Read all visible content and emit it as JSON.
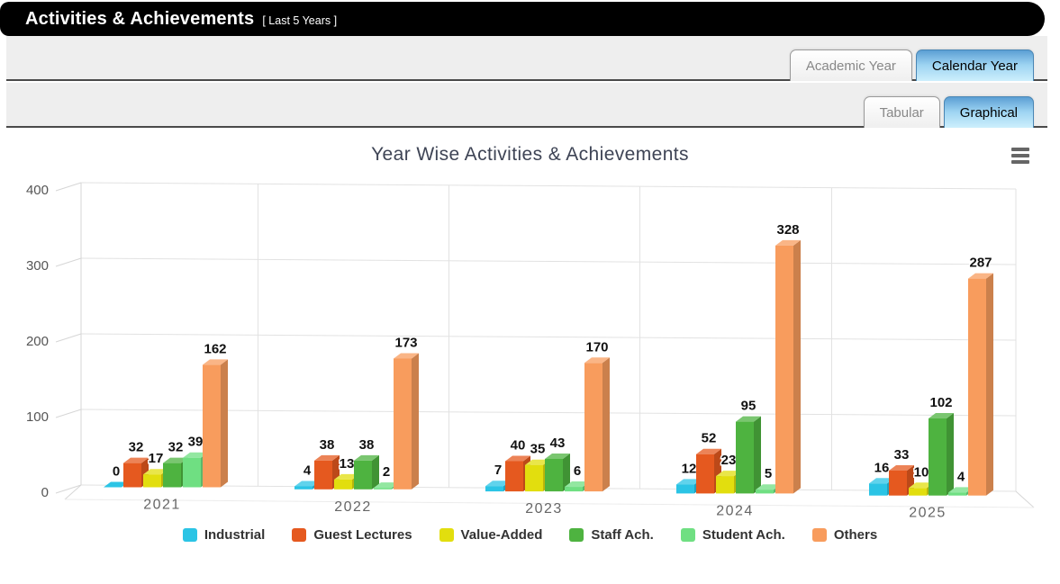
{
  "header": {
    "title": "Activities & Achievements",
    "subtitle": "[ Last 5 Years ]"
  },
  "toolbars": {
    "year_type_tabs": [
      {
        "label": "Academic Year",
        "active": false
      },
      {
        "label": "Calendar Year",
        "active": true
      }
    ],
    "view_tabs": [
      {
        "label": "Tabular",
        "active": false
      },
      {
        "label": "Graphical",
        "active": true
      }
    ]
  },
  "menu_icon": "context-menu-icon",
  "chart_data": {
    "type": "bar",
    "variant": "3d-column",
    "title": "Year Wise Activities & Achievements",
    "categories": [
      "2021",
      "2022",
      "2023",
      "2024",
      "2025"
    ],
    "series": [
      {
        "name": "Industrial",
        "color": "#2BC4E5",
        "values": [
          0,
          4,
          7,
          12,
          16
        ]
      },
      {
        "name": "Guest Lectures",
        "color": "#E5591F",
        "values": [
          32,
          38,
          40,
          52,
          33
        ]
      },
      {
        "name": "Value-Added",
        "color": "#E2DE0E",
        "values": [
          17,
          13,
          35,
          23,
          10
        ]
      },
      {
        "name": "Staff Ach.",
        "color": "#4EB340",
        "values": [
          32,
          38,
          43,
          95,
          102
        ]
      },
      {
        "name": "Student Ach.",
        "color": "#6FDF82",
        "values": [
          39,
          2,
          6,
          5,
          4
        ]
      },
      {
        "name": "Others",
        "color": "#F89C5D",
        "values": [
          162,
          173,
          170,
          328,
          287
        ]
      }
    ],
    "yaxis": {
      "min": 0,
      "max": 400,
      "ticks": [
        0,
        100,
        200,
        300,
        400
      ]
    },
    "xlabel": "",
    "ylabel": "",
    "grid": true,
    "legend_position": "bottom"
  }
}
